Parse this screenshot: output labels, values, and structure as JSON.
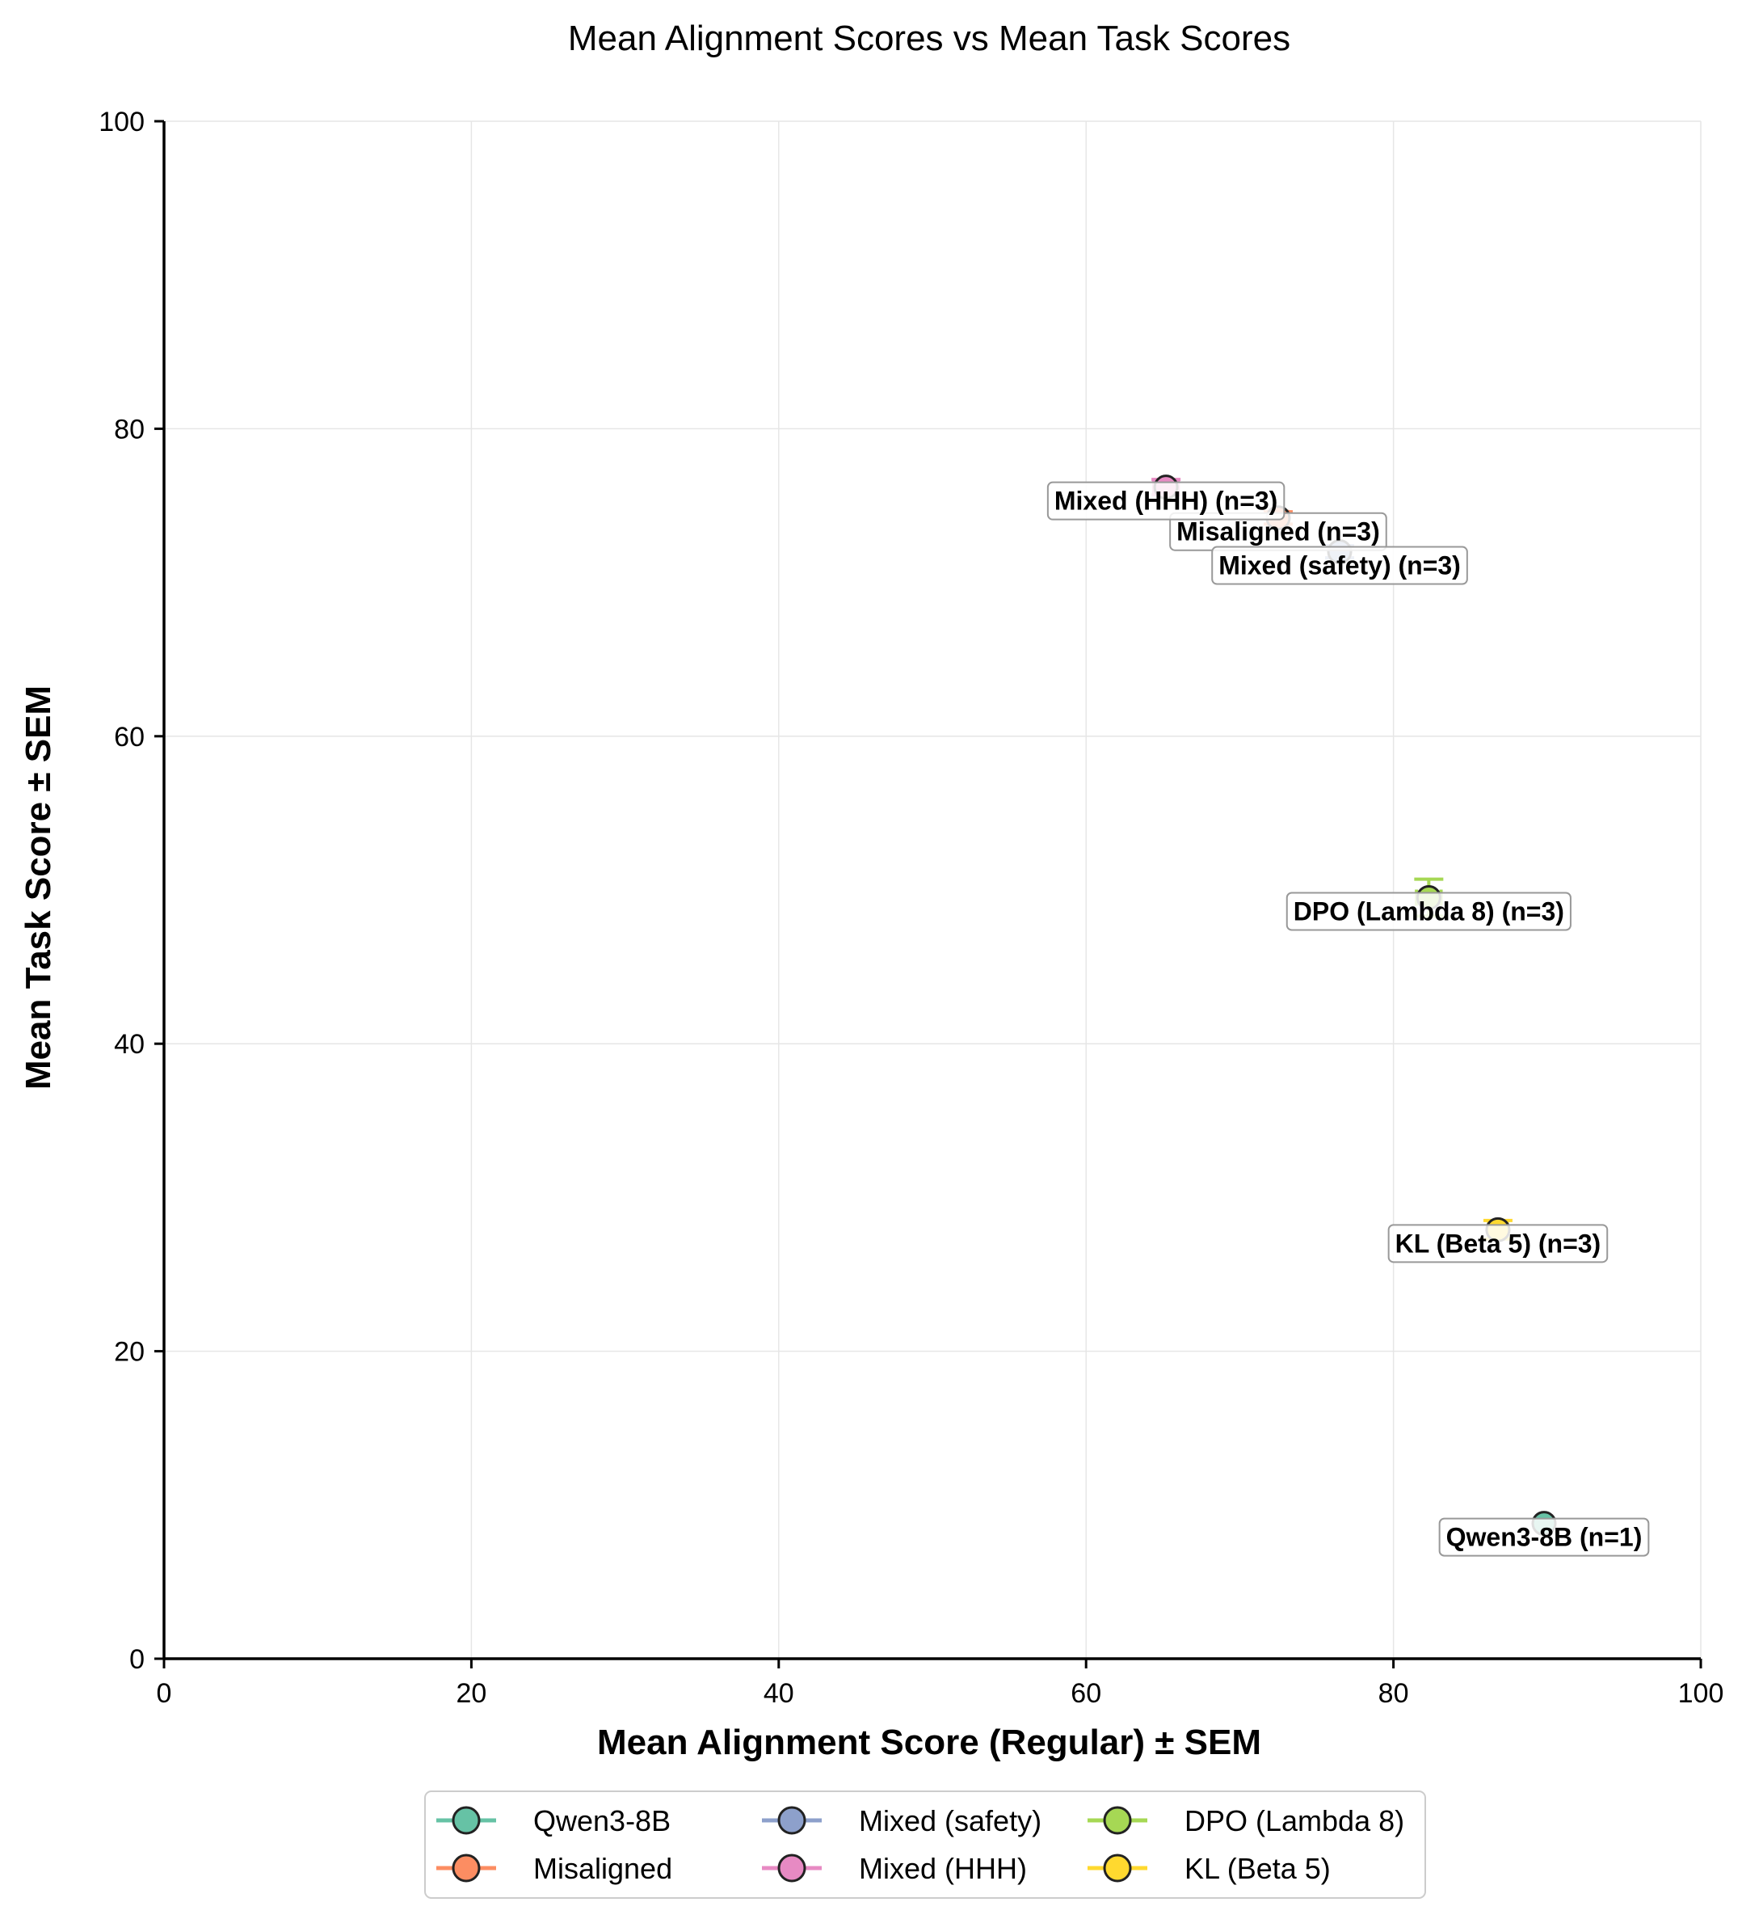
{
  "chart_data": {
    "type": "scatter",
    "title": "Mean Alignment Scores vs Mean Task Scores",
    "xlabel": "Mean Alignment Score (Regular) ± SEM",
    "ylabel": "Mean Task Score ± SEM",
    "xlim": [
      0,
      100
    ],
    "ylim": [
      0,
      100
    ],
    "xticks": [
      0,
      20,
      40,
      60,
      80,
      100
    ],
    "yticks": [
      0,
      20,
      40,
      60,
      80,
      100
    ],
    "grid": true,
    "legend_position": "bottom-center",
    "series": [
      {
        "name": "Qwen3-8B",
        "color": "#66c2a5",
        "x": 89.8,
        "y": 8.8,
        "x_err": 0.0,
        "y_err": 0.0,
        "label": "Qwen3-8B (n=1)"
      },
      {
        "name": "Misaligned",
        "color": "#fc8d62",
        "x": 72.5,
        "y": 74.2,
        "x_err": 0.6,
        "y_err": 0.4,
        "label": "Misaligned (n=3)"
      },
      {
        "name": "Mixed (safety)",
        "color": "#8da0cb",
        "x": 76.5,
        "y": 72.0,
        "x_err": 0.5,
        "y_err": 0.4,
        "label": "Mixed (safety) (n=3)"
      },
      {
        "name": "Mixed (HHH)",
        "color": "#e78ac3",
        "x": 65.2,
        "y": 76.2,
        "x_err": 0.8,
        "y_err": 0.5,
        "label": "Mixed (HHH) (n=3)"
      },
      {
        "name": "DPO (Lambda 8)",
        "color": "#a6d854",
        "x": 82.3,
        "y": 49.5,
        "x_err": 0.8,
        "y_err": 1.2,
        "label": "DPO (Lambda 8) (n=3)"
      },
      {
        "name": "KL (Beta 5)",
        "color": "#ffd92f",
        "x": 86.8,
        "y": 27.9,
        "x_err": 0.6,
        "y_err": 0.6,
        "label": "KL (Beta 5) (n=3)"
      }
    ]
  }
}
